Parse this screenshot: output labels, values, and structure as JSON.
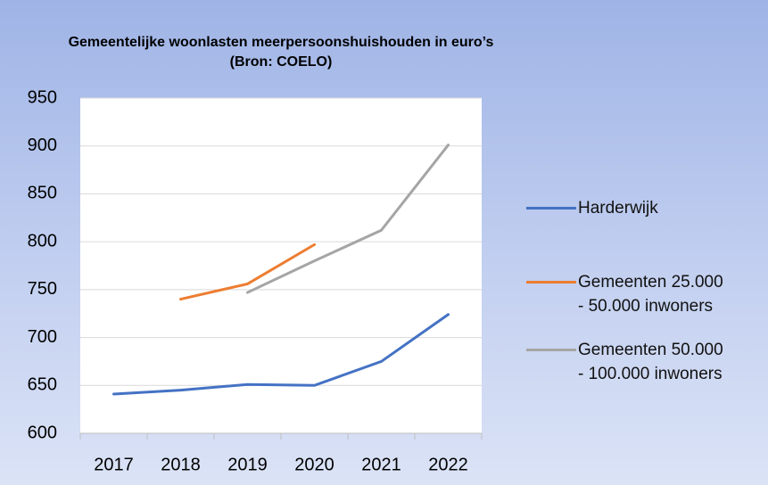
{
  "chart_data": {
    "type": "line",
    "title": "Gemeentelijke woonlasten meerpersoonshuishouden in euro’s",
    "subtitle": "(Bron: COELO)",
    "categories": [
      "2017",
      "2018",
      "2019",
      "2020",
      "2021",
      "2022"
    ],
    "series": [
      {
        "name": "Harderwijk",
        "color": "#4472c4",
        "values": [
          641,
          645,
          651,
          650,
          675,
          724
        ]
      },
      {
        "name": "Gemeenten 25.000 - 50.000 inwoners",
        "color": "#ed7d31",
        "values": [
          null,
          740,
          756,
          797,
          null,
          null
        ]
      },
      {
        "name": "Gemeenten 50.000 - 100.000 inwoners",
        "color": "#a5a5a5",
        "values": [
          null,
          null,
          747,
          780,
          812,
          901
        ]
      }
    ],
    "ylim": [
      600,
      950
    ],
    "yticks": [
      600,
      650,
      700,
      750,
      800,
      850,
      900,
      950
    ],
    "grid": true,
    "legend": "right"
  }
}
